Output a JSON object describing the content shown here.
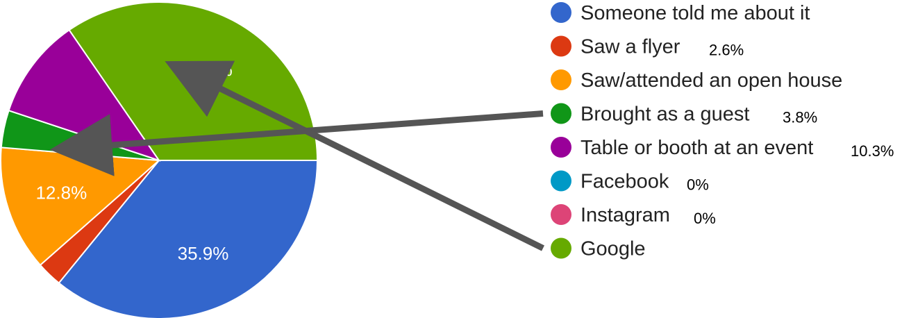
{
  "chart_data": {
    "type": "pie",
    "categories": [
      "Someone told me about it",
      "Saw a flyer",
      "Saw/attended an open house",
      "Brought as a guest",
      "Table or booth at an event",
      "Facebook",
      "Instagram",
      "Google"
    ],
    "values": [
      35.9,
      2.6,
      12.8,
      3.8,
      10.3,
      0,
      0,
      34.6
    ],
    "slice_labels": [
      "35.9%",
      "",
      "12.8%",
      "",
      "",
      "",
      "",
      "34.6%"
    ],
    "legend_notes": [
      "",
      "2.6%",
      "",
      "3.8%",
      "10.3%",
      "0%",
      "0%",
      ""
    ],
    "colors": [
      "#3366cc",
      "#dc3912",
      "#ff9900",
      "#109618",
      "#990099",
      "#0099c6",
      "#dd4477",
      "#66aa00"
    ],
    "legend_position": "right",
    "annotations": [
      {
        "type": "arrow",
        "from_legend": "Brought as a guest",
        "to_slice": "Brought as a guest",
        "color": "#555555"
      },
      {
        "type": "arrow",
        "from_legend": "Google",
        "to_slice": "Google",
        "color": "#555555"
      }
    ]
  }
}
